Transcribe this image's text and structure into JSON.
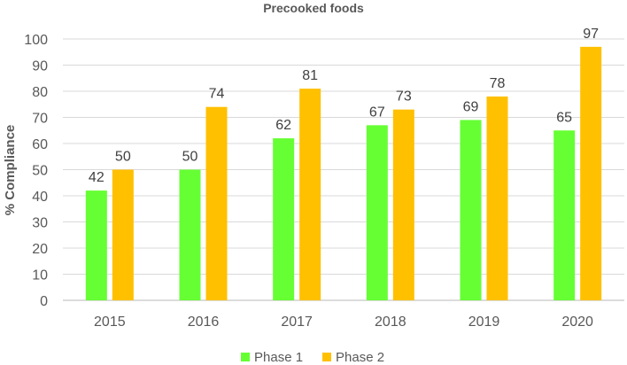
{
  "chart_data": {
    "type": "bar",
    "title": "Precooked foods",
    "xlabel": "",
    "ylabel": "% Compliance",
    "ylim": [
      0,
      100
    ],
    "yticks": [
      0,
      10,
      20,
      30,
      40,
      50,
      60,
      70,
      80,
      90,
      100
    ],
    "grid": true,
    "legend": "bottom",
    "categories": [
      "2015",
      "2016",
      "2017",
      "2018",
      "2019",
      "2020"
    ],
    "series": [
      {
        "name": "Phase 1",
        "color": "#66FF33",
        "values": [
          42,
          50,
          62,
          67,
          69,
          65
        ]
      },
      {
        "name": "Phase 2",
        "color": "#FFC000",
        "values": [
          50,
          74,
          81,
          73,
          78,
          97
        ]
      }
    ]
  }
}
